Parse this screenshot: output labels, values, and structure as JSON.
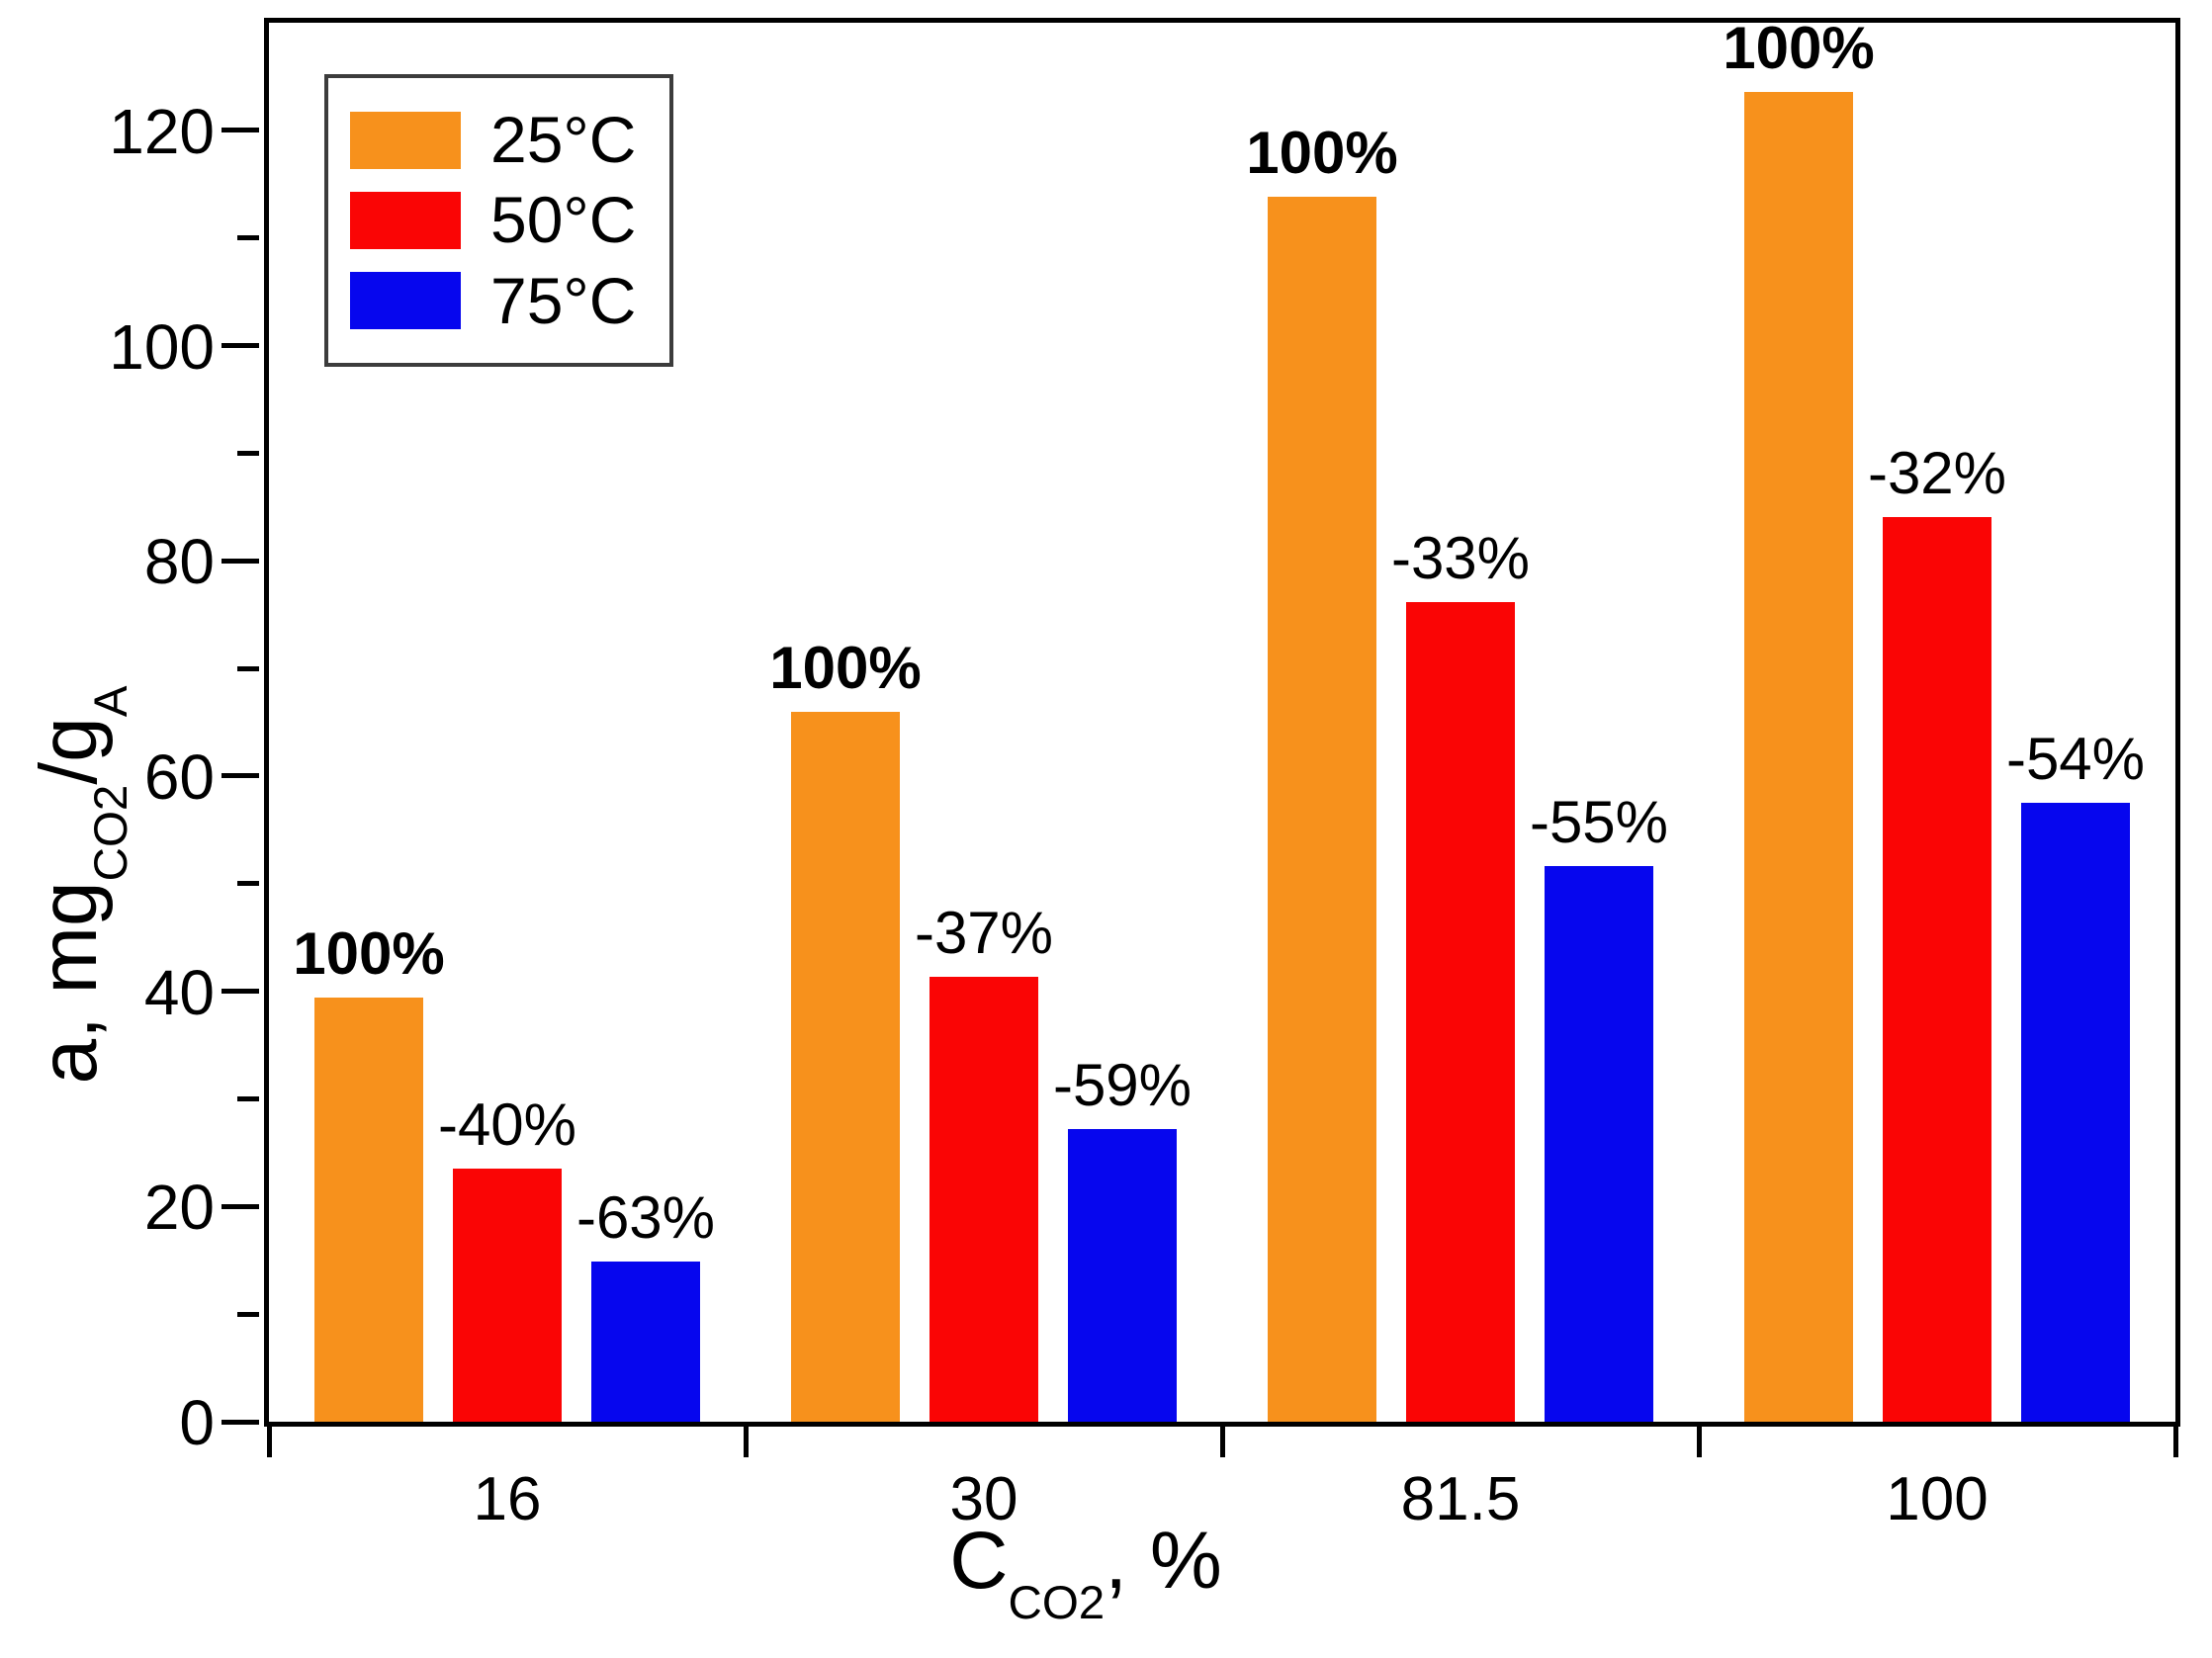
{
  "figure": {
    "background": "#ffffff",
    "axis_color": "#000000",
    "legend_border_color": "#3c3c3c"
  },
  "chart_data": {
    "type": "bar",
    "title": "",
    "categories": [
      "16",
      "30",
      "81.5",
      "100"
    ],
    "series": [
      {
        "name": "25°C",
        "color": "#f7911c",
        "values": [
          39.4,
          66.0,
          113.8,
          123.6
        ],
        "bar_labels": [
          "100%",
          "100%",
          "100%",
          "100%"
        ],
        "labels_bold": true
      },
      {
        "name": "50°C",
        "color": "#fa0505",
        "values": [
          23.5,
          41.3,
          76.2,
          84.1
        ],
        "bar_labels": [
          "-40%",
          "-37%",
          "-33%",
          "-32%"
        ],
        "labels_bold": false
      },
      {
        "name": "75°C",
        "color": "#0606ee",
        "values": [
          14.9,
          27.2,
          51.6,
          57.5
        ],
        "bar_labels": [
          "-63%",
          "-59%",
          "-55%",
          "-54%"
        ],
        "labels_bold": false
      }
    ],
    "ylim": [
      0,
      130
    ],
    "y_major_ticks": [
      0,
      20,
      40,
      60,
      80,
      100,
      120
    ],
    "y_major_tick_labels": [
      "0",
      "20",
      "40",
      "60",
      "80",
      "100",
      "120"
    ],
    "y_minor_ticks": [
      10,
      30,
      50,
      70,
      90,
      110
    ],
    "x_tick_labels": [
      "16",
      "30",
      "81.5",
      "100"
    ],
    "xlabel_parts": {
      "p1": "C",
      "sub1": "CO2",
      "p2": ", %"
    },
    "ylabel_parts": {
      "p1": "a, mg",
      "sub1": "CO2",
      "p2": "/g",
      "sub2": "A"
    },
    "legend_position": "top-left",
    "grid": false
  }
}
